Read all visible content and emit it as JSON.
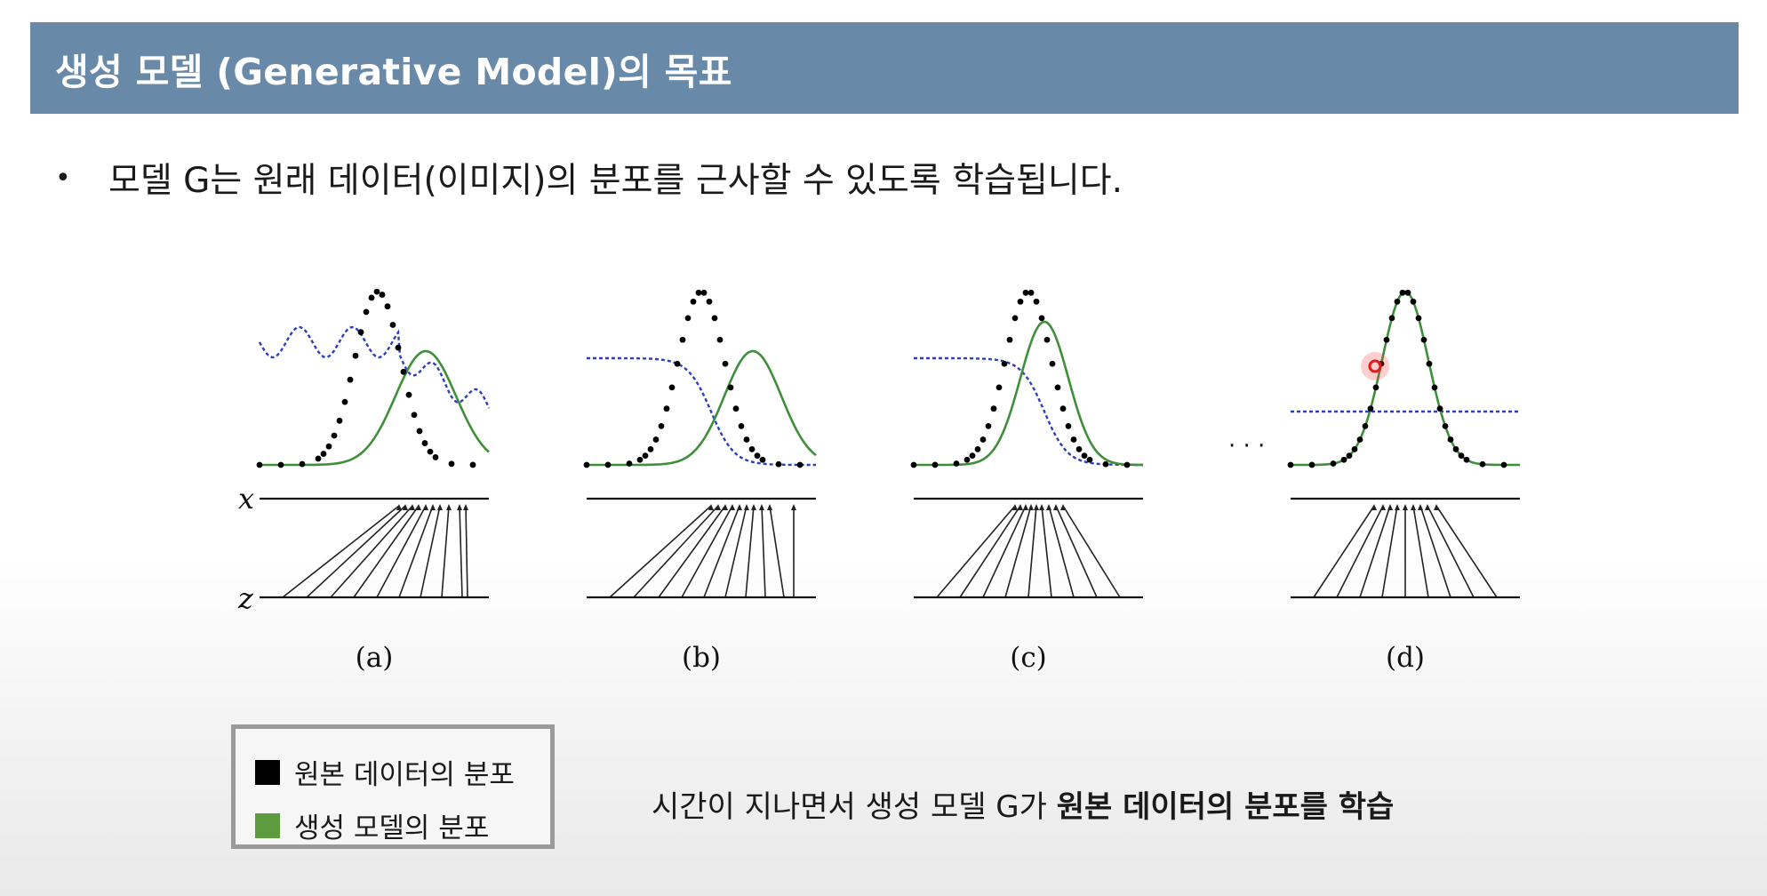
{
  "header": {
    "title": "생성 모델 (Generative Model)의 목표"
  },
  "bullet": {
    "marker": "•",
    "text": "모델 G는 원래 데이터(이미지)의 분포를 근사할 수 있도록 학습됩니다."
  },
  "figure": {
    "axis_x_label": "x",
    "axis_z_label": "z",
    "ellipsis": "· · ·",
    "panels": [
      {
        "label": "(a)"
      },
      {
        "label": "(b)"
      },
      {
        "label": "(c)"
      },
      {
        "label": "(d)"
      }
    ]
  },
  "legend": {
    "items": [
      {
        "label": "원본 데이터의 분포",
        "color": "#000000"
      },
      {
        "label": "생성 모델의 분포",
        "color": "#5e9a3e"
      }
    ]
  },
  "caption": {
    "normal": "시간이 지나면서 생성 모델 G가 ",
    "bold": "원본 데이터의 분포를 학습"
  },
  "colors": {
    "title_bg": "#6889a8",
    "arrow": "#c0141b",
    "data_dots": "#000000",
    "model_curve": "#3f8f3a",
    "discriminator_curve": "#2d3fbf"
  }
}
